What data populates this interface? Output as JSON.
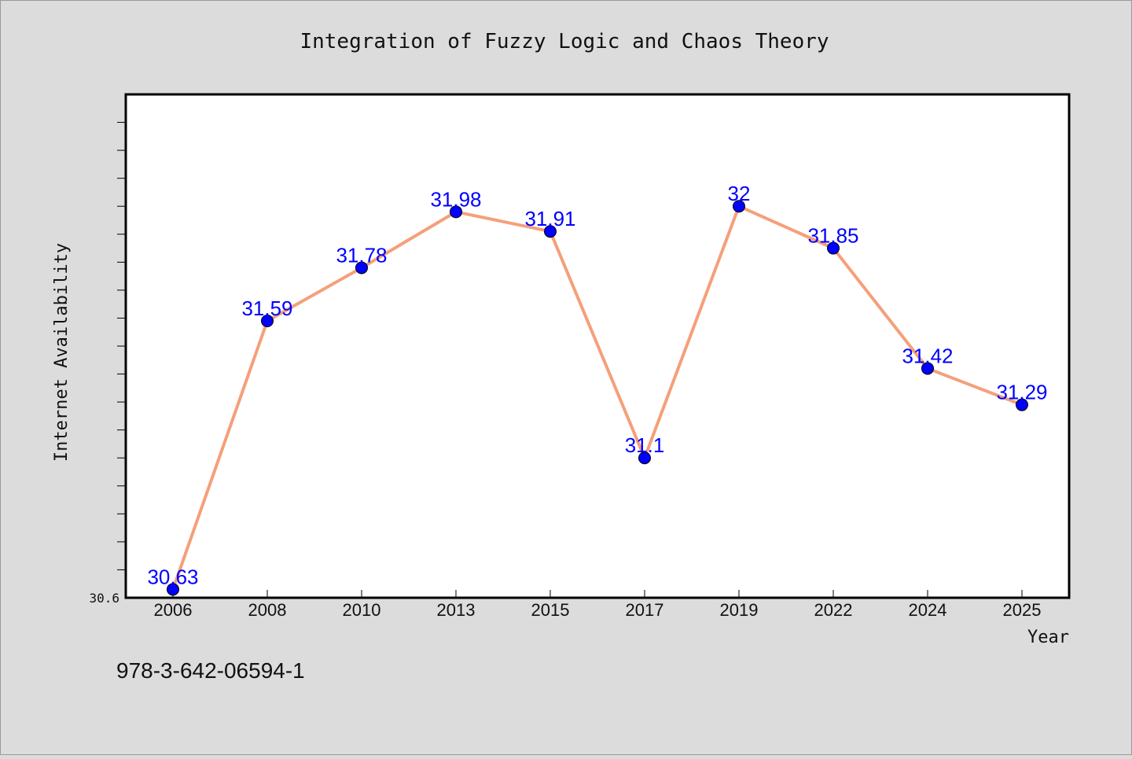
{
  "chart_data": {
    "type": "line",
    "title": "Integration of Fuzzy Logic and Chaos Theory",
    "xlabel": "Year",
    "ylabel": "Internet Availability",
    "categories": [
      "2006",
      "2008",
      "2010",
      "2013",
      "2015",
      "2017",
      "2019",
      "2022",
      "2024",
      "2025"
    ],
    "series": [
      {
        "values": [
          30.63,
          31.59,
          31.78,
          31.98,
          31.91,
          31.1,
          32,
          31.85,
          31.42,
          31.29
        ],
        "labels": [
          "30.63",
          "31.59",
          "31.78",
          "31.98",
          "31.91",
          "31.1",
          "32",
          "31.85",
          "31.42",
          "31.29"
        ]
      }
    ],
    "y_tick_labels": [
      "30.6"
    ],
    "ylim": [
      30.6,
      32.4
    ],
    "grid": false,
    "line_color": "#f4a07a",
    "marker_color": "#0000ff",
    "label_color": "#0000ff",
    "background_color": "#dcdcdc",
    "plot_background": "#ffffff"
  },
  "footer_text": "978-3-642-06594-1"
}
